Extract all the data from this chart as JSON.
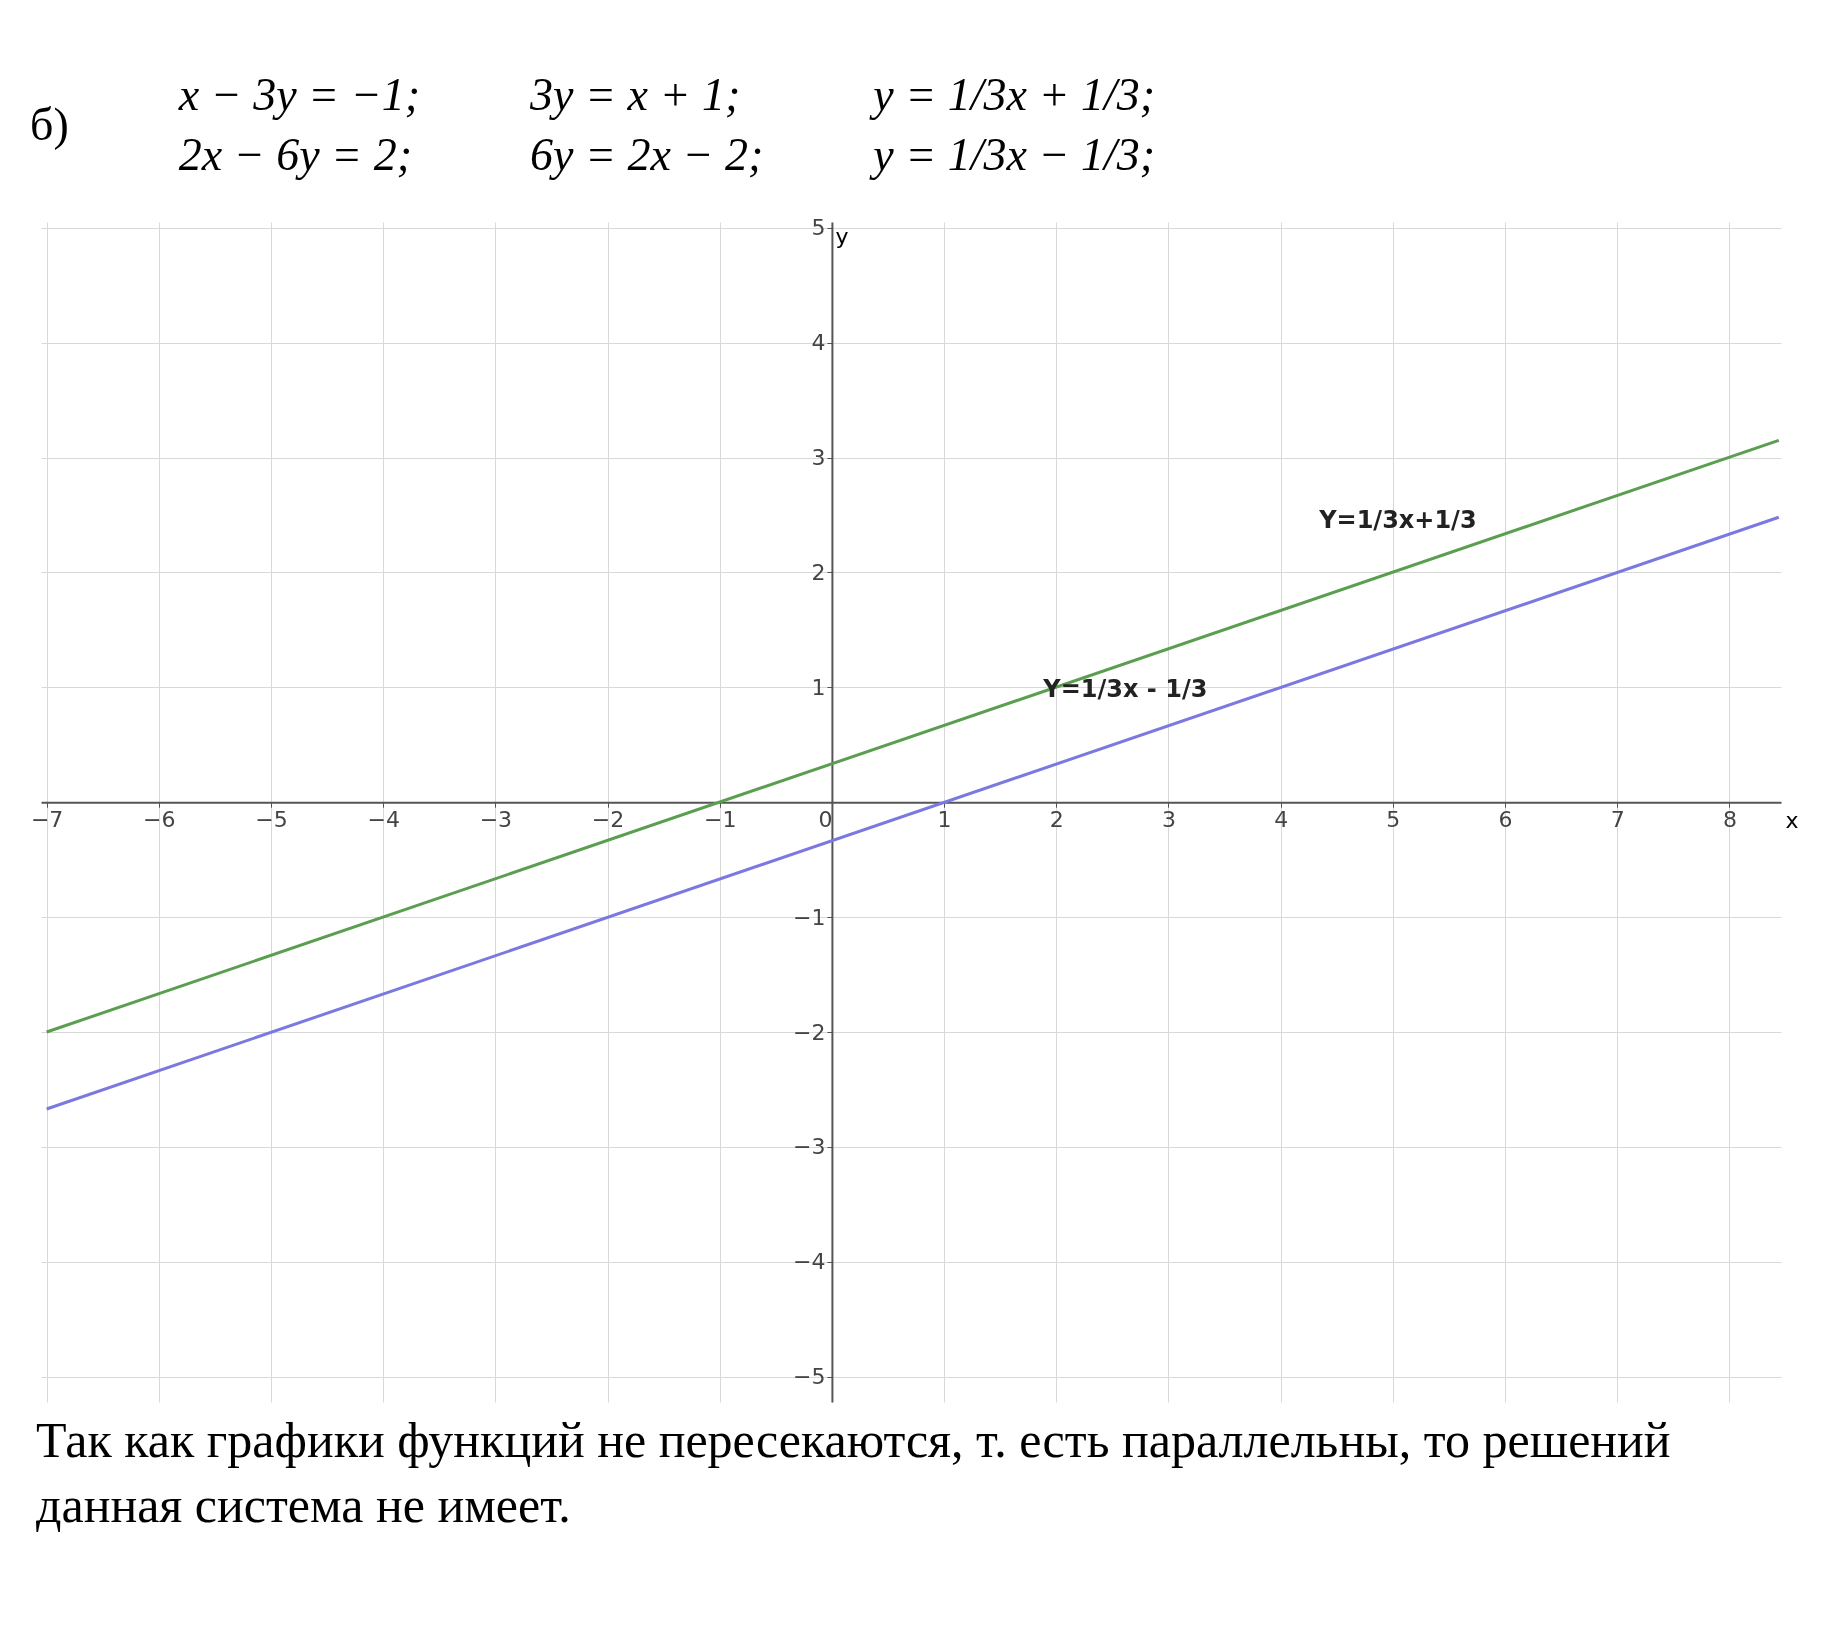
{
  "chart_data": {
    "type": "line",
    "xlabel": "x",
    "ylabel": "y",
    "series": [
      {
        "color": "#5a9e4f",
        "values": [
          -2,
          3.15
        ]
      },
      {
        "color": "#7b78e0",
        "values": [
          -2.67,
          2.48
        ]
      }
    ],
    "x": [
      -7,
      8.44
    ],
    "xlim": [
      -7.05,
      8.46
    ],
    "ylim": [
      -5.22,
      5.05
    ],
    "xticks": [
      -7,
      -6,
      -5,
      -4,
      -3,
      -2,
      -1,
      0,
      1,
      2,
      3,
      4,
      5,
      6,
      7,
      8
    ],
    "yticks": [
      -5,
      -4,
      -3,
      -2,
      -1,
      1,
      2,
      3,
      4,
      5
    ],
    "grid": true,
    "legend": false,
    "marker": "none",
    "line_style": "solid",
    "annotations": [
      "б)",
      "x − 3y = −1;\n2x − 6y = 2;",
      "3y = x + 1;\n6y = 2x − 2;",
      "y = 1/3x + 1/3;\ny = 1/3x − 1/3;",
      {
        "text": "Y=1/3x+1/3",
        "x": 5.8,
        "y": 2.27
      },
      {
        "text": "Y=1/3x - 1/3",
        "x": 3.4,
        "y": 0.8
      },
      "Так как графики функций не пересекаются, т. есть параллельны, то решений данная система не имеет."
    ]
  }
}
